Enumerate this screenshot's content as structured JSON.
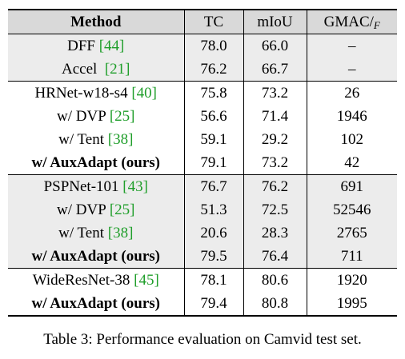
{
  "header": {
    "method": "Method",
    "tc": "TC",
    "miou": "mIoU",
    "gmac": "GMAC/",
    "gmac_sub": "F"
  },
  "rows": [
    {
      "name": "DFF ",
      "ref": "[44]",
      "tc": "78.0",
      "miou": "66.0",
      "gmac": "–",
      "bold": false,
      "gray": true,
      "group_start": false
    },
    {
      "name": "Accel  ",
      "ref": "[21]",
      "tc": "76.2",
      "miou": "66.7",
      "gmac": "–",
      "bold": false,
      "gray": true,
      "group_start": false
    },
    {
      "name": "HRNet-w18-s4 ",
      "ref": "[40]",
      "tc": "75.8",
      "miou": "73.2",
      "gmac": "26",
      "bold": false,
      "gray": false,
      "group_start": true
    },
    {
      "name": "w/ DVP ",
      "ref": "[25]",
      "tc": "56.6",
      "miou": "71.4",
      "gmac": "1946",
      "bold": false,
      "gray": false,
      "group_start": false
    },
    {
      "name": "w/ Tent ",
      "ref": "[38]",
      "tc": "59.1",
      "miou": "29.2",
      "gmac": "102",
      "bold": false,
      "gray": false,
      "group_start": false
    },
    {
      "name": "w/ AuxAdapt (ours)",
      "ref": "",
      "tc": "79.1",
      "miou": "73.2",
      "gmac": "42",
      "bold": true,
      "gray": false,
      "group_start": false
    },
    {
      "name": "PSPNet-101 ",
      "ref": "[43]",
      "tc": "76.7",
      "miou": "76.2",
      "gmac": "691",
      "bold": false,
      "gray": true,
      "group_start": true
    },
    {
      "name": "w/ DVP ",
      "ref": "[25]",
      "tc": "51.3",
      "miou": "72.5",
      "gmac": "52546",
      "bold": false,
      "gray": true,
      "group_start": false
    },
    {
      "name": "w/ Tent ",
      "ref": "[38]",
      "tc": "20.6",
      "miou": "28.3",
      "gmac": "2765",
      "bold": false,
      "gray": true,
      "group_start": false
    },
    {
      "name": "w/ AuxAdapt (ours)",
      "ref": "",
      "tc": "79.5",
      "miou": "76.4",
      "gmac": "711",
      "bold": true,
      "gray": true,
      "group_start": false
    },
    {
      "name": "WideResNet-38 ",
      "ref": "[45]",
      "tc": "78.1",
      "miou": "80.6",
      "gmac": "1920",
      "bold": false,
      "gray": false,
      "group_start": true
    },
    {
      "name": "w/ AuxAdapt (ours)",
      "ref": "",
      "tc": "79.4",
      "miou": "80.8",
      "gmac": "1995",
      "bold": true,
      "gray": false,
      "group_start": false
    }
  ],
  "caption": {
    "label": "Table 3:",
    "text": "Performance evaluation on Camvid test set."
  },
  "colors": {
    "header_bg": "#d9d9d9",
    "gray_row_bg": "#ececec",
    "citation": "#1f9e2a"
  }
}
